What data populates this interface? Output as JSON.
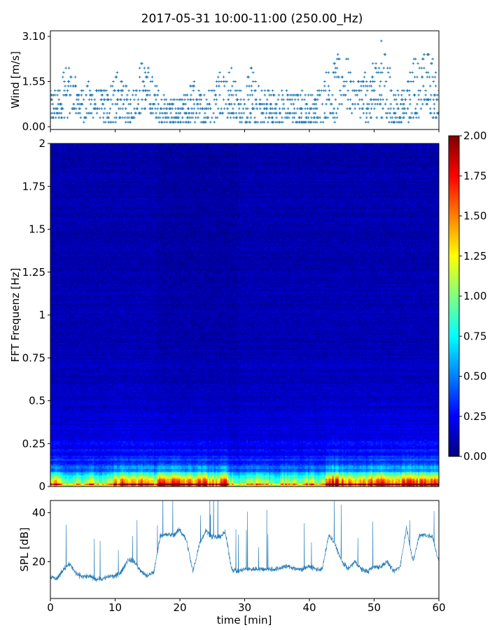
{
  "figure": {
    "title": "2017-05-31 10:00-11:00 (250.00_Hz)"
  },
  "chart_data": [
    {
      "type": "scatter",
      "panel": "wind",
      "ylabel": "Wind [m/s]",
      "ylim": [
        0,
        3.1
      ],
      "yticks": [
        "0.00",
        "1.55",
        "3.10"
      ],
      "xlim": [
        0,
        60
      ],
      "color": "#1f77b4",
      "marker": "+",
      "grid": false,
      "x": [
        0,
        1,
        2,
        3,
        4,
        5,
        6,
        7,
        8,
        9,
        10,
        11,
        12,
        13,
        14,
        15,
        16,
        17,
        18,
        19,
        20,
        21,
        22,
        23,
        24,
        25,
        26,
        27,
        28,
        29,
        30,
        31,
        32,
        33,
        34,
        35,
        36,
        37,
        38,
        39,
        40,
        41,
        42,
        43,
        44,
        45,
        46,
        47,
        48,
        49,
        50,
        51,
        52,
        53,
        54,
        55,
        56,
        57,
        58,
        59,
        60
      ],
      "y_low": [
        0.2,
        0.2,
        0.3,
        0.3,
        0.4,
        0.2,
        0.2,
        0.3,
        0.2,
        0.1,
        0.1,
        0.3,
        0.1,
        0.3,
        0.5,
        0.6,
        0.3,
        0.2,
        0.2,
        0.1,
        0.1,
        0.1,
        0.2,
        0.1,
        0.1,
        0.1,
        0.4,
        0.4,
        0.2,
        0.2,
        0.1,
        0.1,
        0.1,
        0.1,
        0.1,
        0.1,
        0.1,
        0.2,
        0.1,
        0.1,
        0.1,
        0.1,
        0.2,
        0.3,
        0.2,
        0.3,
        0.5,
        0.3,
        0.2,
        0.2,
        0.3,
        0.3,
        0.1,
        0.1,
        0.2,
        0.2,
        0.2,
        0.4,
        0.6,
        0.3,
        0.4
      ],
      "y_high": [
        1.3,
        1.4,
        2.2,
        2.0,
        1.6,
        1.5,
        1.6,
        1.3,
        1.4,
        1.3,
        2.3,
        1.6,
        1.4,
        1.3,
        2.3,
        2.1,
        1.6,
        1.2,
        1.0,
        1.0,
        1.0,
        1.1,
        1.7,
        1.2,
        1.4,
        1.3,
        2.2,
        2.0,
        2.0,
        1.3,
        1.3,
        2.2,
        1.4,
        1.3,
        1.4,
        1.2,
        1.3,
        1.2,
        1.2,
        1.3,
        1.1,
        1.3,
        1.6,
        2.2,
        2.3,
        2.6,
        2.3,
        1.4,
        2.1,
        1.8,
        2.3,
        3.1,
        2.4,
        1.5,
        1.2,
        1.4,
        2.5,
        2.3,
        2.6,
        2.5,
        1.3
      ]
    },
    {
      "type": "heatmap",
      "panel": "spectrogram",
      "ylabel": "FFT Frequenz [Hz]",
      "yticks": [
        "0",
        "0.25",
        "0.5",
        "0.75",
        "1",
        "1.25",
        "1.5",
        "1.75",
        "2"
      ],
      "ylim": [
        0,
        2
      ],
      "xlim": [
        0,
        60
      ],
      "colormap": "jet",
      "clim": [
        0,
        2
      ],
      "colorbar_ticks": [
        "0.00",
        "0.25",
        "0.50",
        "0.75",
        "1.00",
        "1.25",
        "1.50",
        "1.75",
        "2.00"
      ],
      "low_freq_intensity": [
        1.3,
        1.5,
        1.1,
        0.9,
        1.2,
        1.0,
        1.3,
        1.1,
        0.9,
        1.0,
        1.5,
        1.8,
        1.6,
        1.4,
        1.7,
        1.6,
        1.3,
        2.0,
        2.0,
        1.9,
        1.8,
        1.7,
        1.7,
        1.8,
        1.8,
        1.6,
        1.5,
        2.0,
        1.1,
        0.9,
        1.0,
        1.2,
        1.3,
        1.1,
        1.0,
        0.9,
        1.1,
        1.2,
        1.0,
        1.1,
        1.3,
        1.2,
        1.0,
        2.0,
        2.0,
        1.8,
        1.7,
        1.5,
        1.6,
        1.5,
        1.9,
        1.8,
        1.7,
        1.5,
        1.6,
        2.0,
        2.0,
        1.9,
        1.8,
        2.0
      ]
    },
    {
      "type": "line",
      "panel": "spl",
      "ylabel": "SPL [dB]",
      "xlabel": "time [min]",
      "yticks": [
        "20",
        "40"
      ],
      "ylim": [
        5,
        45
      ],
      "xlim": [
        0,
        60
      ],
      "xticks": [
        "0",
        "10",
        "20",
        "30",
        "40",
        "50",
        "60"
      ],
      "color": "#1f77b4",
      "x": [
        0,
        1,
        2,
        3,
        4,
        5,
        6,
        7,
        8,
        9,
        10,
        11,
        12,
        13,
        14,
        15,
        16,
        17,
        18,
        19,
        20,
        21,
        22,
        23,
        24,
        25,
        26,
        27,
        28,
        29,
        30,
        31,
        32,
        33,
        34,
        35,
        36,
        37,
        38,
        39,
        40,
        41,
        42,
        43,
        44,
        45,
        46,
        47,
        48,
        49,
        50,
        51,
        52,
        53,
        54,
        55,
        56,
        57,
        58,
        59,
        60
      ],
      "y": [
        14,
        13,
        17,
        19,
        15,
        14,
        14,
        13,
        13,
        14,
        14,
        16,
        21,
        20,
        16,
        14,
        16,
        31,
        31,
        31,
        33,
        29,
        16,
        27,
        33,
        30,
        30,
        32,
        17,
        16,
        17,
        17,
        17,
        17,
        17,
        17,
        18,
        18,
        17,
        17,
        18,
        17,
        17,
        31,
        27,
        20,
        17,
        20,
        17,
        16,
        18,
        18,
        20,
        16,
        18,
        34,
        20,
        31,
        31,
        30,
        20
      ]
    }
  ]
}
